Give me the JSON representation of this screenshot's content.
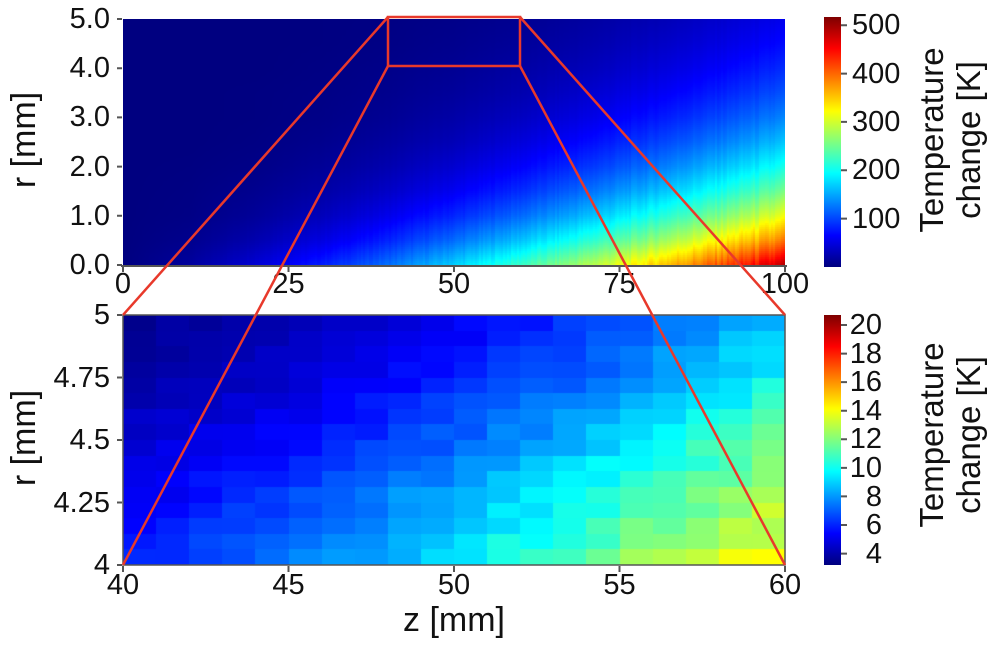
{
  "figure": {
    "accent_red": "#e8392b",
    "axis_color": "#555555",
    "text_color": "#111111",
    "background": "#ffffff",
    "xlabel": "z [mm]"
  },
  "chart_data": [
    {
      "type": "heatmap",
      "name": "full-domain-temperature-map",
      "xlabel": "z [mm]",
      "ylabel": "r [mm]",
      "xlim": [
        0,
        100
      ],
      "ylim": [
        0,
        5
      ],
      "x_tick_labels": [
        "0",
        "25",
        "50",
        "75",
        "100"
      ],
      "y_tick_labels": [
        "5.0",
        "4.0",
        "3.0",
        "2.0",
        "1.0",
        "0.0"
      ],
      "colormap": "jet",
      "vmin": 0,
      "vmax": 517,
      "colorbar_label_line1": "Temperature",
      "colorbar_label_line2": "change [K]",
      "colorbar_tick_labels": [
        "500",
        "400",
        "300",
        "200",
        "100"
      ],
      "colorbar_tick_values": [
        500,
        400,
        300,
        200,
        100
      ],
      "grid_z": [
        0,
        10,
        20,
        30,
        40,
        50,
        60,
        70,
        80,
        90,
        100
      ],
      "grid_r": [
        5,
        4.5,
        4,
        3.5,
        3,
        2.5,
        2,
        1.5,
        1,
        0.5,
        0
      ],
      "values_K": [
        [
          0,
          0,
          0,
          1,
          2,
          5,
          9,
          17,
          26,
          39,
          55
        ],
        [
          0,
          0,
          0,
          1,
          3,
          7,
          13,
          22,
          34,
          49,
          68
        ],
        [
          0,
          0,
          0,
          2,
          5,
          10,
          18,
          29,
          44,
          62,
          85
        ],
        [
          0,
          0,
          1,
          3,
          7,
          14,
          24,
          39,
          57,
          79,
          105
        ],
        [
          0,
          0,
          1,
          4,
          10,
          20,
          33,
          51,
          73,
          100,
          130
        ],
        [
          0,
          0,
          2,
          7,
          16,
          28,
          46,
          68,
          95,
          126,
          162
        ],
        [
          0,
          1,
          4,
          12,
          24,
          41,
          63,
          90,
          122,
          160,
          201
        ],
        [
          0,
          2,
          8,
          19,
          36,
          58,
          86,
          120,
          158,
          202,
          250
        ],
        [
          0,
          3,
          13,
          30,
          54,
          83,
          118,
          159,
          205,
          256,
          311
        ],
        [
          0,
          7,
          24,
          49,
          81,
          119,
          163,
          212,
          265,
          324,
          386
        ],
        [
          0,
          15,
          43,
          79,
          121,
          170,
          223,
          281,
          343,
          410,
          480
        ]
      ],
      "zoom_rect": {
        "z": [
          40,
          60
        ],
        "r": [
          4,
          5
        ]
      }
    },
    {
      "type": "heatmap",
      "name": "zoom-region-temperature-map",
      "xlabel": "z [mm]",
      "ylabel": "r [mm]",
      "xlim": [
        40,
        60
      ],
      "ylim": [
        4,
        5
      ],
      "x_tick_labels": [
        "40",
        "45",
        "50",
        "55",
        "60"
      ],
      "y_tick_labels": [
        "5",
        "4.75",
        "4.5",
        "4.25",
        "4"
      ],
      "colormap": "jet",
      "vmin": 3.2,
      "vmax": 20.7,
      "colorbar_label_line1": "Temperature",
      "colorbar_label_line2": "change [K]",
      "colorbar_tick_labels": [
        "20",
        "18",
        "16",
        "14",
        "12",
        "10",
        "8",
        "6",
        "4"
      ],
      "colorbar_tick_values": [
        20,
        18,
        16,
        14,
        12,
        10,
        8,
        6,
        4
      ],
      "grid_z": [
        40,
        45,
        50,
        55,
        60
      ],
      "grid_r": [
        5,
        4.75,
        4.5,
        4.25,
        4
      ],
      "values_K": [
        [
          3.5,
          4.0,
          5.0,
          6.5,
          8.5
        ],
        [
          3.8,
          4.5,
          6.0,
          7.5,
          10.0
        ],
        [
          4.5,
          5.5,
          7.0,
          9.0,
          11.5
        ],
        [
          5.0,
          6.5,
          8.5,
          10.5,
          13.0
        ],
        [
          6.0,
          7.5,
          9.5,
          12.0,
          14.2
        ]
      ]
    }
  ]
}
